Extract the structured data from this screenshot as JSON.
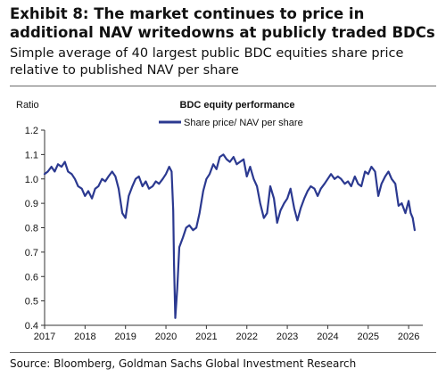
{
  "exhibit": {
    "title": "Exhibit 8: The market continues to price in additional NAV writedowns at publicly traded BDCs",
    "subtitle": "Simple average of 40 largest public BDC equities share price relative to published NAV per share",
    "source": "Source: Bloomberg, Goldman Sachs Global Investment Research"
  },
  "chart_data": {
    "type": "line",
    "title": "BDC equity performance",
    "ylabel": "Ratio",
    "xlabel": "",
    "ylim": [
      0.4,
      1.2
    ],
    "xlim": [
      2017.0,
      2026.35
    ],
    "y_ticks": [
      "1.2",
      "1.1",
      "1.0",
      "0.9",
      "0.8",
      "0.7",
      "0.6",
      "0.5",
      "0.4"
    ],
    "x_ticks": [
      "2017",
      "2018",
      "2019",
      "2020",
      "2021",
      "2022",
      "2023",
      "2024",
      "2025",
      "2026"
    ],
    "grid": false,
    "legend": "top-center",
    "color": "#2b3990",
    "series": [
      {
        "name": "Share price/ NAV per share",
        "x": [
          2017.0,
          2017.08,
          2017.17,
          2017.25,
          2017.33,
          2017.42,
          2017.5,
          2017.58,
          2017.67,
          2017.75,
          2017.83,
          2017.92,
          2018.0,
          2018.08,
          2018.17,
          2018.25,
          2018.33,
          2018.42,
          2018.5,
          2018.58,
          2018.67,
          2018.75,
          2018.83,
          2018.92,
          2019.0,
          2019.08,
          2019.17,
          2019.25,
          2019.33,
          2019.42,
          2019.5,
          2019.58,
          2019.67,
          2019.75,
          2019.83,
          2019.92,
          2020.0,
          2020.08,
          2020.14,
          2020.18,
          2020.2,
          2020.23,
          2020.28,
          2020.33,
          2020.42,
          2020.5,
          2020.58,
          2020.67,
          2020.75,
          2020.83,
          2020.92,
          2021.0,
          2021.08,
          2021.17,
          2021.25,
          2021.33,
          2021.42,
          2021.5,
          2021.58,
          2021.67,
          2021.75,
          2021.83,
          2021.92,
          2022.0,
          2022.08,
          2022.17,
          2022.25,
          2022.33,
          2022.42,
          2022.5,
          2022.58,
          2022.67,
          2022.75,
          2022.83,
          2022.92,
          2023.0,
          2023.08,
          2023.17,
          2023.25,
          2023.33,
          2023.42,
          2023.5,
          2023.58,
          2023.67,
          2023.75,
          2023.83,
          2023.92,
          2024.0,
          2024.08,
          2024.17,
          2024.25,
          2024.33,
          2024.42,
          2024.5,
          2024.58,
          2024.67,
          2024.75,
          2024.83,
          2024.92,
          2025.0,
          2025.08,
          2025.17,
          2025.25,
          2025.33,
          2025.42,
          2025.5,
          2025.58,
          2025.67,
          2025.75,
          2025.83,
          2025.92,
          2026.0,
          2026.05,
          2026.1,
          2026.15
        ],
        "values": [
          1.02,
          1.03,
          1.05,
          1.03,
          1.06,
          1.05,
          1.07,
          1.03,
          1.02,
          1.0,
          0.97,
          0.96,
          0.93,
          0.95,
          0.92,
          0.96,
          0.97,
          1.0,
          0.99,
          1.01,
          1.03,
          1.01,
          0.96,
          0.86,
          0.84,
          0.93,
          0.97,
          1.0,
          1.01,
          0.97,
          0.99,
          0.96,
          0.97,
          0.99,
          0.98,
          1.0,
          1.02,
          1.05,
          1.03,
          0.87,
          0.65,
          0.43,
          0.55,
          0.72,
          0.76,
          0.8,
          0.81,
          0.79,
          0.8,
          0.86,
          0.95,
          1.0,
          1.02,
          1.06,
          1.04,
          1.09,
          1.1,
          1.08,
          1.07,
          1.09,
          1.06,
          1.07,
          1.08,
          1.01,
          1.05,
          1.0,
          0.97,
          0.9,
          0.84,
          0.86,
          0.97,
          0.92,
          0.82,
          0.87,
          0.9,
          0.92,
          0.96,
          0.88,
          0.83,
          0.88,
          0.92,
          0.95,
          0.97,
          0.96,
          0.93,
          0.96,
          0.98,
          1.0,
          1.02,
          1.0,
          1.01,
          1.0,
          0.98,
          0.99,
          0.97,
          1.01,
          0.98,
          0.97,
          1.03,
          1.02,
          1.05,
          1.03,
          0.93,
          0.98,
          1.01,
          1.03,
          1.0,
          0.98,
          0.89,
          0.9,
          0.86,
          0.91,
          0.86,
          0.84,
          0.79
        ]
      }
    ]
  }
}
